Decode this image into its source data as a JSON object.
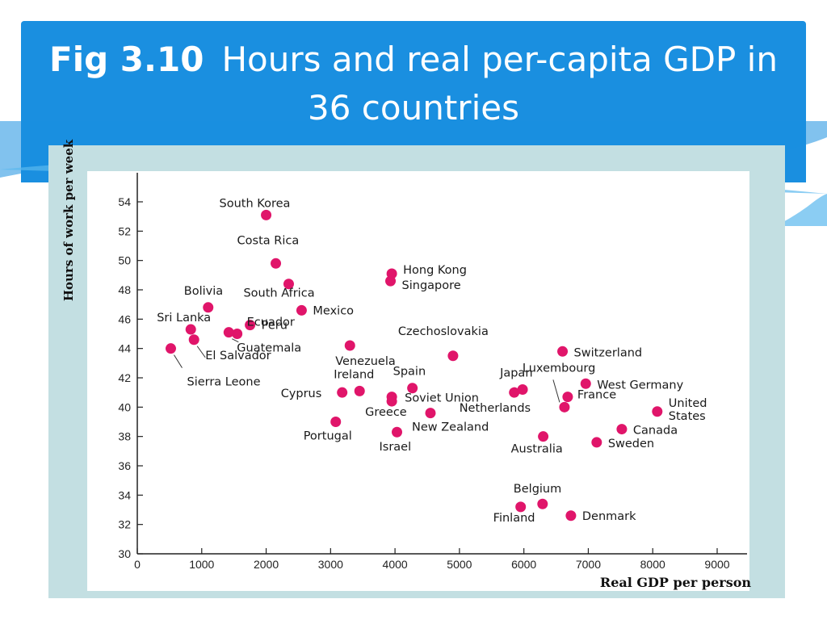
{
  "slide": {
    "title_prefix": "Fig 3.10",
    "title_text": "Hours and real per-capita GDP in 36 countries",
    "accent_color": "#1a8fe0",
    "panel_color": "#c3dfe2"
  },
  "chart_data": {
    "type": "scatter",
    "xlabel": "Real GDP per person",
    "ylabel": "Hours of work per week",
    "xlim": [
      0,
      9500
    ],
    "ylim": [
      30,
      56
    ],
    "x_ticks": [
      0,
      1000,
      2000,
      3000,
      4000,
      5000,
      6000,
      7000,
      8000,
      9000
    ],
    "y_ticks": [
      30,
      32,
      34,
      36,
      38,
      40,
      42,
      44,
      46,
      48,
      50,
      52,
      54
    ],
    "grid": false,
    "point_color": "#e0156a",
    "points": [
      {
        "x": 2000,
        "y": 53.1,
        "label": "South  Korea"
      },
      {
        "x": 2150,
        "y": 49.8,
        "label": "Costa  Rica"
      },
      {
        "x": 2350,
        "y": 48.4,
        "label": "South  Africa"
      },
      {
        "x": 2550,
        "y": 46.6,
        "label": "Mexico"
      },
      {
        "x": 1100,
        "y": 46.8,
        "label": "Bolivia"
      },
      {
        "x": 830,
        "y": 45.3,
        "label": "Sri  Lanka"
      },
      {
        "x": 1750,
        "y": 45.6,
        "label": "Peru"
      },
      {
        "x": 1550,
        "y": 45.0,
        "label": "Ecuador"
      },
      {
        "x": 1420,
        "y": 45.1,
        "label": "Guatemala"
      },
      {
        "x": 880,
        "y": 44.6,
        "label": "El  Salvador"
      },
      {
        "x": 520,
        "y": 44.0,
        "label": "Sierra  Leone"
      },
      {
        "x": 3950,
        "y": 49.1,
        "label": "Hong  Kong"
      },
      {
        "x": 3930,
        "y": 48.6,
        "label": "Singapore"
      },
      {
        "x": 3300,
        "y": 44.2,
        "label": "Venezuela"
      },
      {
        "x": 4900,
        "y": 43.5,
        "label": "Czechoslovakia"
      },
      {
        "x": 3450,
        "y": 41.1,
        "label": "Ireland"
      },
      {
        "x": 4270,
        "y": 41.3,
        "label": "Spain"
      },
      {
        "x": 3180,
        "y": 41.0,
        "label": "Cyprus"
      },
      {
        "x": 3950,
        "y": 40.7,
        "label": "Soviet  Union"
      },
      {
        "x": 3950,
        "y": 40.4,
        "label": "Greece"
      },
      {
        "x": 4550,
        "y": 39.6,
        "label": "New  Zealand"
      },
      {
        "x": 3080,
        "y": 39.0,
        "label": "Portugal"
      },
      {
        "x": 4030,
        "y": 38.3,
        "label": "Israel"
      },
      {
        "x": 5980,
        "y": 41.2,
        "label": "Japan"
      },
      {
        "x": 5850,
        "y": 41.0,
        "label": "Netherlands"
      },
      {
        "x": 6600,
        "y": 43.8,
        "label": "Switzerland"
      },
      {
        "x": 6630,
        "y": 40.0,
        "label": "Luxembourg"
      },
      {
        "x": 6960,
        "y": 41.6,
        "label": "West  Germany"
      },
      {
        "x": 6680,
        "y": 40.7,
        "label": "France"
      },
      {
        "x": 8070,
        "y": 39.7,
        "label": "United States"
      },
      {
        "x": 7520,
        "y": 38.5,
        "label": "Canada"
      },
      {
        "x": 6300,
        "y": 38.0,
        "label": "Australia"
      },
      {
        "x": 7130,
        "y": 37.6,
        "label": "Sweden"
      },
      {
        "x": 6290,
        "y": 33.4,
        "label": "Belgium"
      },
      {
        "x": 5950,
        "y": 33.2,
        "label": "Finland"
      },
      {
        "x": 6730,
        "y": 32.6,
        "label": "Denmark"
      }
    ]
  }
}
